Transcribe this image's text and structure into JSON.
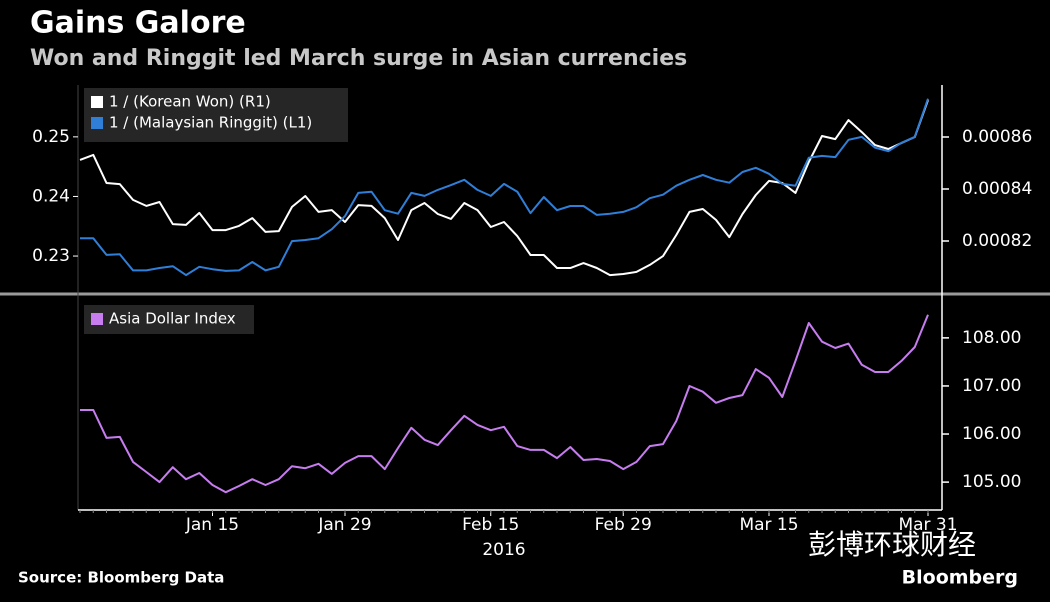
{
  "chart_data": [
    {
      "type": "line",
      "title": "Gains Galore",
      "subtitle": "Won and Ringgit led March surge in Asian currencies",
      "ylim": [
        0.2238,
        0.2587
      ],
      "yticks": [
        0.23,
        0.24,
        0.25
      ],
      "y2lim": [
        0.0008,
        0.00088
      ],
      "y2ticks": [
        0.00082,
        0.00084,
        0.00086
      ],
      "series": [
        {
          "name": "1 / (Korean Won) (R1)",
          "color": "#ffffff",
          "axis": "y2",
          "values": [
            0.0008512,
            0.0008531,
            0.0008423,
            0.0008419,
            0.0008358,
            0.0008335,
            0.000835,
            0.0008265,
            0.0008262,
            0.0008308,
            0.0008242,
            0.0008242,
            0.0008258,
            0.0008288,
            0.0008235,
            0.0008238,
            0.0008331,
            0.0008373,
            0.0008312,
            0.0008319,
            0.0008273,
            0.0008338,
            0.0008335,
            0.0008288,
            0.0008204,
            0.0008319,
            0.0008346,
            0.0008304,
            0.0008285,
            0.0008346,
            0.0008319,
            0.0008254,
            0.0008273,
            0.0008219,
            0.0008146,
            0.0008146,
            0.0008096,
            0.0008096,
            0.0008115,
            0.0008096,
            0.0008069,
            0.0008073,
            0.0008081,
            0.0008108,
            0.0008142,
            0.0008223,
            0.0008312,
            0.0008323,
            0.0008281,
            0.0008215,
            0.0008304,
            0.0008377,
            0.0008431,
            0.0008423,
            0.0008385,
            0.0008504,
            0.0008604,
            0.0008592,
            0.0008665,
            0.0008619,
            0.0008569,
            0.0008554,
            0.0008577,
            0.00086,
            0.0008742
          ]
        },
        {
          "name": "1 / (Malaysian Ringgit) (L1)",
          "color": "#2f7fd8",
          "axis": "y",
          "values": [
            0.233,
            0.233,
            0.2302,
            0.2303,
            0.2276,
            0.2276,
            0.228,
            0.2283,
            0.2268,
            0.2282,
            0.2278,
            0.2275,
            0.2276,
            0.229,
            0.2276,
            0.2282,
            0.2325,
            0.2327,
            0.233,
            0.2345,
            0.2367,
            0.2406,
            0.2408,
            0.2377,
            0.2371,
            0.2406,
            0.2401,
            0.2411,
            0.2419,
            0.2428,
            0.2411,
            0.2401,
            0.2421,
            0.2408,
            0.2372,
            0.2399,
            0.2377,
            0.2384,
            0.2384,
            0.2369,
            0.2371,
            0.2374,
            0.2382,
            0.2397,
            0.2403,
            0.2418,
            0.2428,
            0.2436,
            0.2428,
            0.2423,
            0.2441,
            0.2448,
            0.2438,
            0.2421,
            0.2418,
            0.2465,
            0.2468,
            0.2466,
            0.2495,
            0.25,
            0.2482,
            0.2476,
            0.249,
            0.25,
            0.2564
          ]
        }
      ]
    },
    {
      "type": "line",
      "categories": [
        null,
        null,
        null,
        null,
        null,
        null,
        null,
        null,
        null,
        null,
        "Jan 15",
        null,
        null,
        null,
        null,
        null,
        null,
        null,
        null,
        null,
        "Jan 29",
        null,
        null,
        null,
        null,
        null,
        null,
        null,
        null,
        null,
        null,
        "Feb 15",
        null,
        null,
        null,
        null,
        null,
        null,
        null,
        null,
        null,
        "Feb 29",
        null,
        null,
        null,
        null,
        null,
        null,
        null,
        null,
        null,
        null,
        "Mar 15",
        null,
        null,
        null,
        null,
        null,
        null,
        null,
        null,
        null,
        null,
        null,
        "Mar 31"
      ],
      "x_label": "2016",
      "y2lim": [
        104.42,
        108.85
      ],
      "y2ticks": [
        {
          "value": 105,
          "label": "105.00"
        },
        {
          "value": 106,
          "label": "106.00"
        },
        {
          "value": 107,
          "label": "107.00"
        },
        {
          "value": 108,
          "label": "108.00"
        }
      ],
      "series": [
        {
          "name": "Asia Dollar Index",
          "color": "#c77df0",
          "axis": "y2",
          "values": [
            106.5,
            106.5,
            105.92,
            105.94,
            105.42,
            105.21,
            105.0,
            105.31,
            105.06,
            105.19,
            104.94,
            104.79,
            104.92,
            105.06,
            104.94,
            105.06,
            105.33,
            105.29,
            105.38,
            105.17,
            105.4,
            105.54,
            105.54,
            105.27,
            105.71,
            106.13,
            105.88,
            105.77,
            106.08,
            106.38,
            106.19,
            106.08,
            106.15,
            105.75,
            105.67,
            105.67,
            105.5,
            105.73,
            105.46,
            105.48,
            105.44,
            105.27,
            105.42,
            105.75,
            105.79,
            106.27,
            107.0,
            106.88,
            106.65,
            106.75,
            106.81,
            107.35,
            107.17,
            106.77,
            107.52,
            108.31,
            107.92,
            107.79,
            107.88,
            107.44,
            107.29,
            107.29,
            107.52,
            107.81,
            108.48
          ]
        }
      ]
    }
  ],
  "footer": {
    "source": "Source: Bloomberg Data",
    "logo": "Bloomberg",
    "watermark": "彭博环球财经"
  }
}
